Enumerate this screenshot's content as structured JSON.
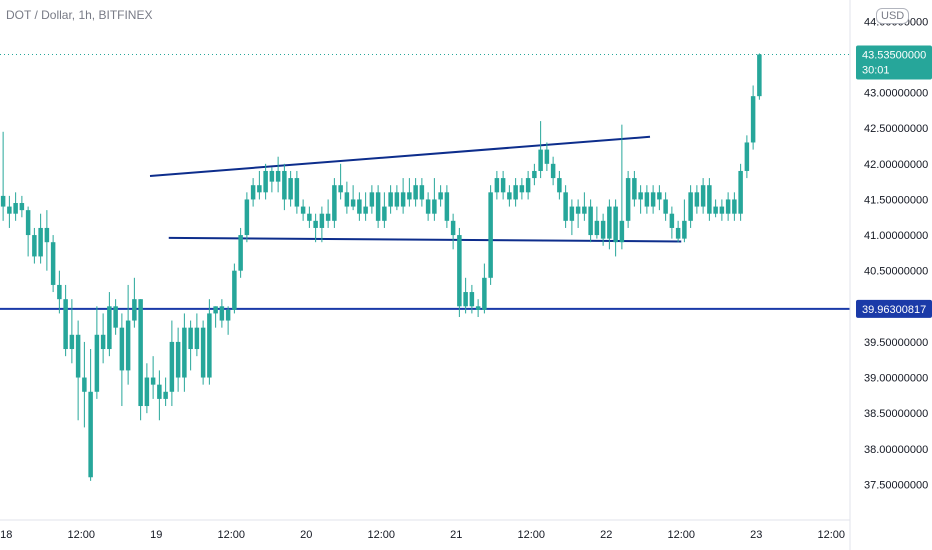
{
  "header": {
    "title": "DOT / Dollar, 1h, BITFINEX",
    "currency": "USD"
  },
  "colors": {
    "up": "#26a69a",
    "down": "#26a69a",
    "trendline": "#0d2d8c",
    "support": "#1a3aa8",
    "price_tag": "#26a69a",
    "support_tag": "#1a3aa8",
    "axis_text": "#131722"
  },
  "chart_data": {
    "type": "candlestick",
    "y_ticks": [
      "44.00000000",
      "43.00000000",
      "42.50000000",
      "42.00000000",
      "41.50000000",
      "41.00000000",
      "40.50000000",
      "40.00000000",
      "39.50000000",
      "39.00000000",
      "38.50000000",
      "38.00000000",
      "37.50000000"
    ],
    "y_tick_values": [
      44.0,
      43.0,
      42.5,
      42.0,
      41.5,
      41.0,
      40.5,
      40.0,
      39.5,
      39.0,
      38.5,
      38.0,
      37.5
    ],
    "ylim": [
      37.0,
      44.3
    ],
    "x_ticks": [
      "18",
      "12:00",
      "19",
      "12:00",
      "20",
      "12:00",
      "21",
      "12:00",
      "22",
      "12:00",
      "23",
      "12:00"
    ],
    "x_tick_hours": [
      0,
      12,
      24,
      36,
      48,
      60,
      72,
      84,
      96,
      108,
      120,
      132
    ],
    "last_price": {
      "value": 43.535,
      "label": "43.53500000",
      "countdown": "30:01"
    },
    "support_level": {
      "value": 39.96300817,
      "label": "39.96300817"
    },
    "trendlines": [
      {
        "name": "upper",
        "from": [
          23,
          41.83
        ],
        "to": [
          103,
          42.38
        ]
      },
      {
        "name": "lower",
        "from": [
          26,
          40.96
        ],
        "to": [
          108,
          40.91
        ]
      }
    ],
    "candles": [
      [
        -0.5,
        41.55,
        41.4,
        42.45,
        41.2
      ],
      [
        0.5,
        41.4,
        41.3,
        41.55,
        41.1
      ],
      [
        1.5,
        41.3,
        41.45,
        41.6,
        41.2
      ],
      [
        2.5,
        41.45,
        41.35,
        41.55,
        41.25
      ],
      [
        3.5,
        41.35,
        41.0,
        41.4,
        40.7
      ],
      [
        4.5,
        41.0,
        40.7,
        41.1,
        40.6
      ],
      [
        5.5,
        40.7,
        41.1,
        41.3,
        40.6
      ],
      [
        6.5,
        41.1,
        40.9,
        41.35,
        40.5
      ],
      [
        7.5,
        40.9,
        40.3,
        41.0,
        40.2
      ],
      [
        8.5,
        40.3,
        40.1,
        40.5,
        39.9
      ],
      [
        9.5,
        40.1,
        39.4,
        40.3,
        39.3
      ],
      [
        10.5,
        39.4,
        39.6,
        40.1,
        39.2
      ],
      [
        11.5,
        39.6,
        39.0,
        39.8,
        38.4
      ],
      [
        12.5,
        39.0,
        38.8,
        39.5,
        38.3
      ],
      [
        13.5,
        38.8,
        37.6,
        39.4,
        37.55
      ],
      [
        14.5,
        38.8,
        39.6,
        40.0,
        38.7
      ],
      [
        15.5,
        39.6,
        39.4,
        39.9,
        39.2
      ],
      [
        16.5,
        39.4,
        40.0,
        40.2,
        39.3
      ],
      [
        17.5,
        40.0,
        39.7,
        40.1,
        39.6
      ],
      [
        18.5,
        39.7,
        39.1,
        39.9,
        38.6
      ],
      [
        19.5,
        39.1,
        39.8,
        40.3,
        38.9
      ],
      [
        20.5,
        39.8,
        40.1,
        40.4,
        39.7
      ],
      [
        21.5,
        40.1,
        38.6,
        40.1,
        38.4
      ],
      [
        22.5,
        38.6,
        39.0,
        39.2,
        38.5
      ],
      [
        23.5,
        39.0,
        38.9,
        39.3,
        38.7
      ],
      [
        24.5,
        38.9,
        38.7,
        39.1,
        38.4
      ],
      [
        25.5,
        38.7,
        38.8,
        39.0,
        38.6
      ],
      [
        26.5,
        38.8,
        39.5,
        39.8,
        38.6
      ],
      [
        27.5,
        39.5,
        39.0,
        39.7,
        38.8
      ],
      [
        28.5,
        39.0,
        39.7,
        39.9,
        38.8
      ],
      [
        29.5,
        39.7,
        39.4,
        39.8,
        39.1
      ],
      [
        30.5,
        39.4,
        39.7,
        39.9,
        39.3
      ],
      [
        31.5,
        39.7,
        39.0,
        39.8,
        38.9
      ],
      [
        32.5,
        39.0,
        39.9,
        40.1,
        38.9
      ],
      [
        33.5,
        39.9,
        40.0,
        40.0,
        39.7
      ],
      [
        34.5,
        40.0,
        39.8,
        40.1,
        39.7
      ],
      [
        35.5,
        39.8,
        39.95,
        40.0,
        39.6
      ],
      [
        36.5,
        39.95,
        40.5,
        40.6,
        39.9
      ],
      [
        37.5,
        40.5,
        41.0,
        41.1,
        40.4
      ],
      [
        38.5,
        41.0,
        41.5,
        41.6,
        40.9
      ],
      [
        39.5,
        41.5,
        41.7,
        41.8,
        41.4
      ],
      [
        40.5,
        41.7,
        41.6,
        41.9,
        41.5
      ],
      [
        41.5,
        41.6,
        41.9,
        42.0,
        41.5
      ],
      [
        42.5,
        41.9,
        41.75,
        41.95,
        41.6
      ],
      [
        43.5,
        41.75,
        41.9,
        42.1,
        41.6
      ],
      [
        44.5,
        41.9,
        41.5,
        42.0,
        41.35
      ],
      [
        45.5,
        41.5,
        41.8,
        41.9,
        41.4
      ],
      [
        46.5,
        41.8,
        41.4,
        41.9,
        41.3
      ],
      [
        47.5,
        41.4,
        41.3,
        41.5,
        41.2
      ],
      [
        48.5,
        41.3,
        41.2,
        41.4,
        41.1
      ],
      [
        49.5,
        41.2,
        41.1,
        41.3,
        40.9
      ],
      [
        50.5,
        41.1,
        41.3,
        41.4,
        40.9
      ],
      [
        51.5,
        41.3,
        41.2,
        41.5,
        41.1
      ],
      [
        52.5,
        41.2,
        41.7,
        41.8,
        41.1
      ],
      [
        53.5,
        41.7,
        41.6,
        42.0,
        41.5
      ],
      [
        54.5,
        41.6,
        41.4,
        41.75,
        41.3
      ],
      [
        55.5,
        41.4,
        41.5,
        41.7,
        41.35
      ],
      [
        56.5,
        41.5,
        41.3,
        41.6,
        41.2
      ],
      [
        57.5,
        41.3,
        41.4,
        41.6,
        41.2
      ],
      [
        58.5,
        41.4,
        41.6,
        41.7,
        41.3
      ],
      [
        59.5,
        41.6,
        41.2,
        41.7,
        41.1
      ],
      [
        60.5,
        41.2,
        41.4,
        41.6,
        41.1
      ],
      [
        61.5,
        41.4,
        41.6,
        41.7,
        41.3
      ],
      [
        62.5,
        41.6,
        41.4,
        41.7,
        41.35
      ],
      [
        63.5,
        41.4,
        41.6,
        41.8,
        41.3
      ],
      [
        64.5,
        41.6,
        41.5,
        41.8,
        41.4
      ],
      [
        65.5,
        41.5,
        41.7,
        41.8,
        41.4
      ],
      [
        66.5,
        41.7,
        41.5,
        41.8,
        41.4
      ],
      [
        67.5,
        41.5,
        41.3,
        41.6,
        41.2
      ],
      [
        68.5,
        41.3,
        41.5,
        41.8,
        41.2
      ],
      [
        69.5,
        41.5,
        41.6,
        41.7,
        41.4
      ],
      [
        70.5,
        41.6,
        41.2,
        41.7,
        41.1
      ],
      [
        71.5,
        41.2,
        41.0,
        41.3,
        40.8
      ],
      [
        72.5,
        41.0,
        40.0,
        41.1,
        39.85
      ],
      [
        73.5,
        40.0,
        40.2,
        40.4,
        39.9
      ],
      [
        74.5,
        40.2,
        40.0,
        40.3,
        39.9
      ],
      [
        75.5,
        40.0,
        39.95,
        40.1,
        39.85
      ],
      [
        76.5,
        39.95,
        40.4,
        40.6,
        39.9
      ],
      [
        77.5,
        40.4,
        41.6,
        41.7,
        40.3
      ],
      [
        78.5,
        41.6,
        41.8,
        41.9,
        41.5
      ],
      [
        79.5,
        41.8,
        41.6,
        41.9,
        41.5
      ],
      [
        80.5,
        41.6,
        41.5,
        41.7,
        41.4
      ],
      [
        81.5,
        41.5,
        41.7,
        41.8,
        41.4
      ],
      [
        82.5,
        41.7,
        41.6,
        41.8,
        41.5
      ],
      [
        83.5,
        41.6,
        41.8,
        41.9,
        41.5
      ],
      [
        84.5,
        41.8,
        41.9,
        42.0,
        41.7
      ],
      [
        85.5,
        41.9,
        42.2,
        42.6,
        41.8
      ],
      [
        86.5,
        42.2,
        42.0,
        42.3,
        41.9
      ],
      [
        87.5,
        42.0,
        41.8,
        42.1,
        41.7
      ],
      [
        88.5,
        41.8,
        41.6,
        41.9,
        41.5
      ],
      [
        89.5,
        41.6,
        41.2,
        41.7,
        41.1
      ],
      [
        90.5,
        41.2,
        41.4,
        41.5,
        41.0
      ],
      [
        91.5,
        41.4,
        41.3,
        41.5,
        41.1
      ],
      [
        92.5,
        41.3,
        41.4,
        41.6,
        41.2
      ],
      [
        93.5,
        41.4,
        41.0,
        41.5,
        40.9
      ],
      [
        94.5,
        41.0,
        41.2,
        41.4,
        40.95
      ],
      [
        95.5,
        41.2,
        40.95,
        41.3,
        40.85
      ],
      [
        96.5,
        40.95,
        41.4,
        41.5,
        40.8
      ],
      [
        97.5,
        41.4,
        40.9,
        41.5,
        40.7
      ],
      [
        98.5,
        40.9,
        41.2,
        42.55,
        40.8
      ],
      [
        99.5,
        41.2,
        41.8,
        41.9,
        41.1
      ],
      [
        100.5,
        41.8,
        41.5,
        41.9,
        41.4
      ],
      [
        101.5,
        41.5,
        41.6,
        41.7,
        41.3
      ],
      [
        102.5,
        41.6,
        41.4,
        41.7,
        41.3
      ],
      [
        103.5,
        41.4,
        41.6,
        41.7,
        41.3
      ],
      [
        104.5,
        41.6,
        41.5,
        41.7,
        41.35
      ],
      [
        105.5,
        41.5,
        41.3,
        41.6,
        41.2
      ],
      [
        106.5,
        41.3,
        41.1,
        41.4,
        40.95
      ],
      [
        107.5,
        41.1,
        40.95,
        41.2,
        40.9
      ],
      [
        108.5,
        40.95,
        41.2,
        41.5,
        40.9
      ],
      [
        109.5,
        41.2,
        41.6,
        41.7,
        41.1
      ],
      [
        110.5,
        41.6,
        41.4,
        41.7,
        41.3
      ],
      [
        111.5,
        41.4,
        41.7,
        41.8,
        41.3
      ],
      [
        112.5,
        41.7,
        41.3,
        41.8,
        41.2
      ],
      [
        113.5,
        41.3,
        41.4,
        41.5,
        41.25
      ],
      [
        114.5,
        41.4,
        41.3,
        41.5,
        41.2
      ],
      [
        115.5,
        41.3,
        41.5,
        41.6,
        41.2
      ],
      [
        116.5,
        41.5,
        41.3,
        41.6,
        41.2
      ],
      [
        117.5,
        41.3,
        41.9,
        42.0,
        41.2
      ],
      [
        118.5,
        41.9,
        42.3,
        42.4,
        41.8
      ],
      [
        119.5,
        42.3,
        42.95,
        43.1,
        42.2
      ],
      [
        120.5,
        42.95,
        43.535,
        43.55,
        42.9
      ]
    ]
  }
}
